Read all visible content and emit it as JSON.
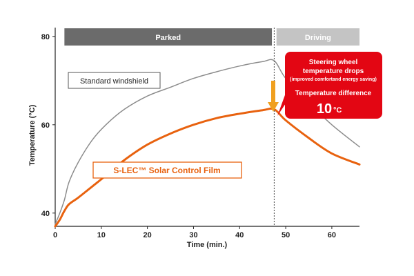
{
  "chart_data": {
    "type": "line",
    "xlabel": "Time (min.)",
    "ylabel": "Temperature (°C)",
    "xlim": [
      0,
      66
    ],
    "ylim": [
      37,
      82
    ],
    "x_ticks": [
      "0",
      "10",
      "20",
      "30",
      "40",
      "50",
      "60"
    ],
    "y_ticks": [
      "40",
      "60",
      "80"
    ],
    "phases": [
      {
        "label": "Parked",
        "x_range": [
          2,
          47
        ],
        "color": "#6b6b6b"
      },
      {
        "label": "Driving",
        "x_range": [
          48,
          66
        ],
        "color": "#c4c4c4"
      }
    ],
    "phase_divider_x": 47.5,
    "series": [
      {
        "name": "Standard windshield",
        "color": "#8c8c8c",
        "x": [
          0,
          1,
          2,
          3,
          5,
          8,
          11,
          15,
          20,
          25,
          30,
          35,
          40,
          45,
          47.5,
          50,
          55,
          60,
          66
        ],
        "y": [
          37.5,
          40,
          43,
          47,
          51.5,
          56.5,
          60,
          63.5,
          66.5,
          68.5,
          70.5,
          72,
          73.3,
          74.3,
          74.5,
          70.5,
          65,
          60,
          55
        ]
      },
      {
        "name": "S-LEC™ Solar Control Film",
        "color": "#e8620f",
        "x": [
          0,
          1,
          2,
          3,
          5,
          8,
          11,
          15,
          20,
          25,
          30,
          35,
          40,
          45,
          47.5,
          50,
          55,
          60,
          66
        ],
        "y": [
          37,
          38.5,
          40.5,
          42,
          43.5,
          46,
          48.5,
          52,
          55.5,
          58,
          60,
          61.5,
          62.5,
          63.3,
          63.5,
          61,
          57,
          53.5,
          51
        ]
      }
    ],
    "callout": {
      "line1": "Steering wheel",
      "line2": "temperature drops",
      "line3": "(improved comfortand energy saving)",
      "line4": "Temperature difference",
      "value": "10",
      "unit": "°C",
      "color": "#e30613",
      "arrow_color": "#f0a020"
    }
  }
}
